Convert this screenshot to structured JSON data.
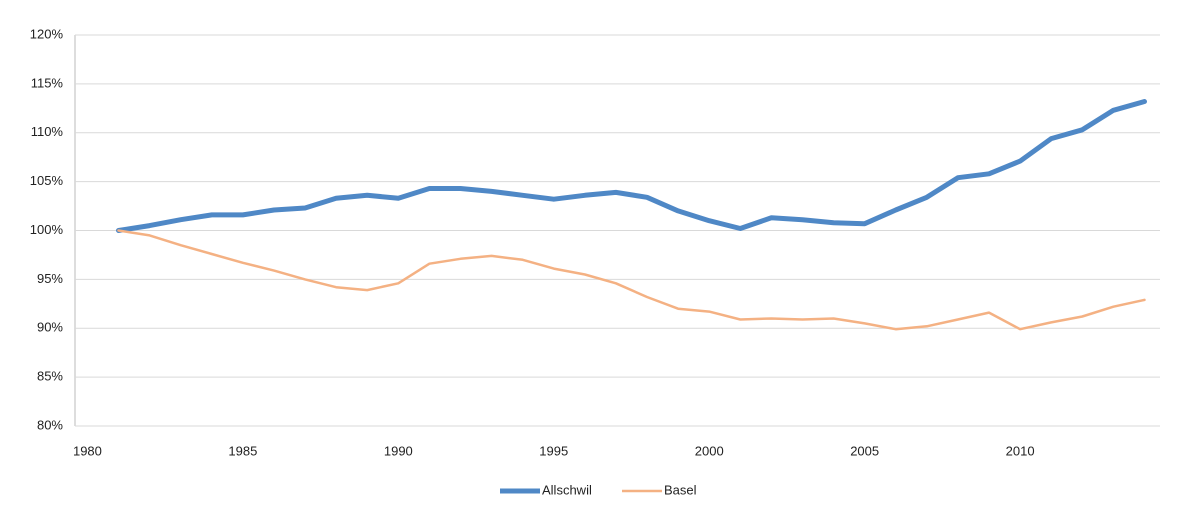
{
  "chart_data": {
    "type": "line",
    "x": [
      1981,
      1982,
      1983,
      1984,
      1985,
      1986,
      1987,
      1988,
      1989,
      1990,
      1991,
      1992,
      1993,
      1994,
      1995,
      1996,
      1997,
      1998,
      1999,
      2000,
      2001,
      2002,
      2003,
      2004,
      2005,
      2006,
      2007,
      2008,
      2009,
      2010,
      2011,
      2012,
      2013,
      2014
    ],
    "series": [
      {
        "name": "Allschwil",
        "color": "#4f88c6",
        "width": 5,
        "values": [
          100,
          100.5,
          101.1,
          101.6,
          101.6,
          102.1,
          102.3,
          103.3,
          103.6,
          103.3,
          104.3,
          104.3,
          104.0,
          103.6,
          103.2,
          103.6,
          103.9,
          103.4,
          102.0,
          101.0,
          100.2,
          101.3,
          101.1,
          100.8,
          100.7,
          102.1,
          103.4,
          105.4,
          105.8,
          107.1,
          109.4,
          110.3,
          112.3,
          113.2
        ]
      },
      {
        "name": "Basel",
        "color": "#f4b183",
        "width": 2.5,
        "values": [
          100,
          99.5,
          98.5,
          97.6,
          96.7,
          95.9,
          95.0,
          94.2,
          93.9,
          94.6,
          96.6,
          97.1,
          97.4,
          97.0,
          96.1,
          95.5,
          94.6,
          93.2,
          92.0,
          91.7,
          90.9,
          91.0,
          90.9,
          91.0,
          90.5,
          89.9,
          90.2,
          90.9,
          91.6,
          89.9,
          90.6,
          91.2,
          92.2,
          92.9
        ]
      }
    ],
    "xlim": [
      1979.6,
      2014.5
    ],
    "xticks": [
      1980,
      1985,
      1990,
      1995,
      2000,
      2005,
      2010
    ],
    "ylim": [
      80,
      120
    ],
    "yticks": [
      {
        "value": 80,
        "label": "80%"
      },
      {
        "value": 85,
        "label": "85%"
      },
      {
        "value": 90,
        "label": "90%"
      },
      {
        "value": 95,
        "label": "95%"
      },
      {
        "value": 100,
        "label": "100%"
      },
      {
        "value": 105,
        "label": "105%"
      },
      {
        "value": 110,
        "label": "110%"
      },
      {
        "value": 115,
        "label": "115%"
      },
      {
        "value": 120,
        "label": "120%"
      }
    ],
    "grid": true,
    "legend": "bottom"
  }
}
